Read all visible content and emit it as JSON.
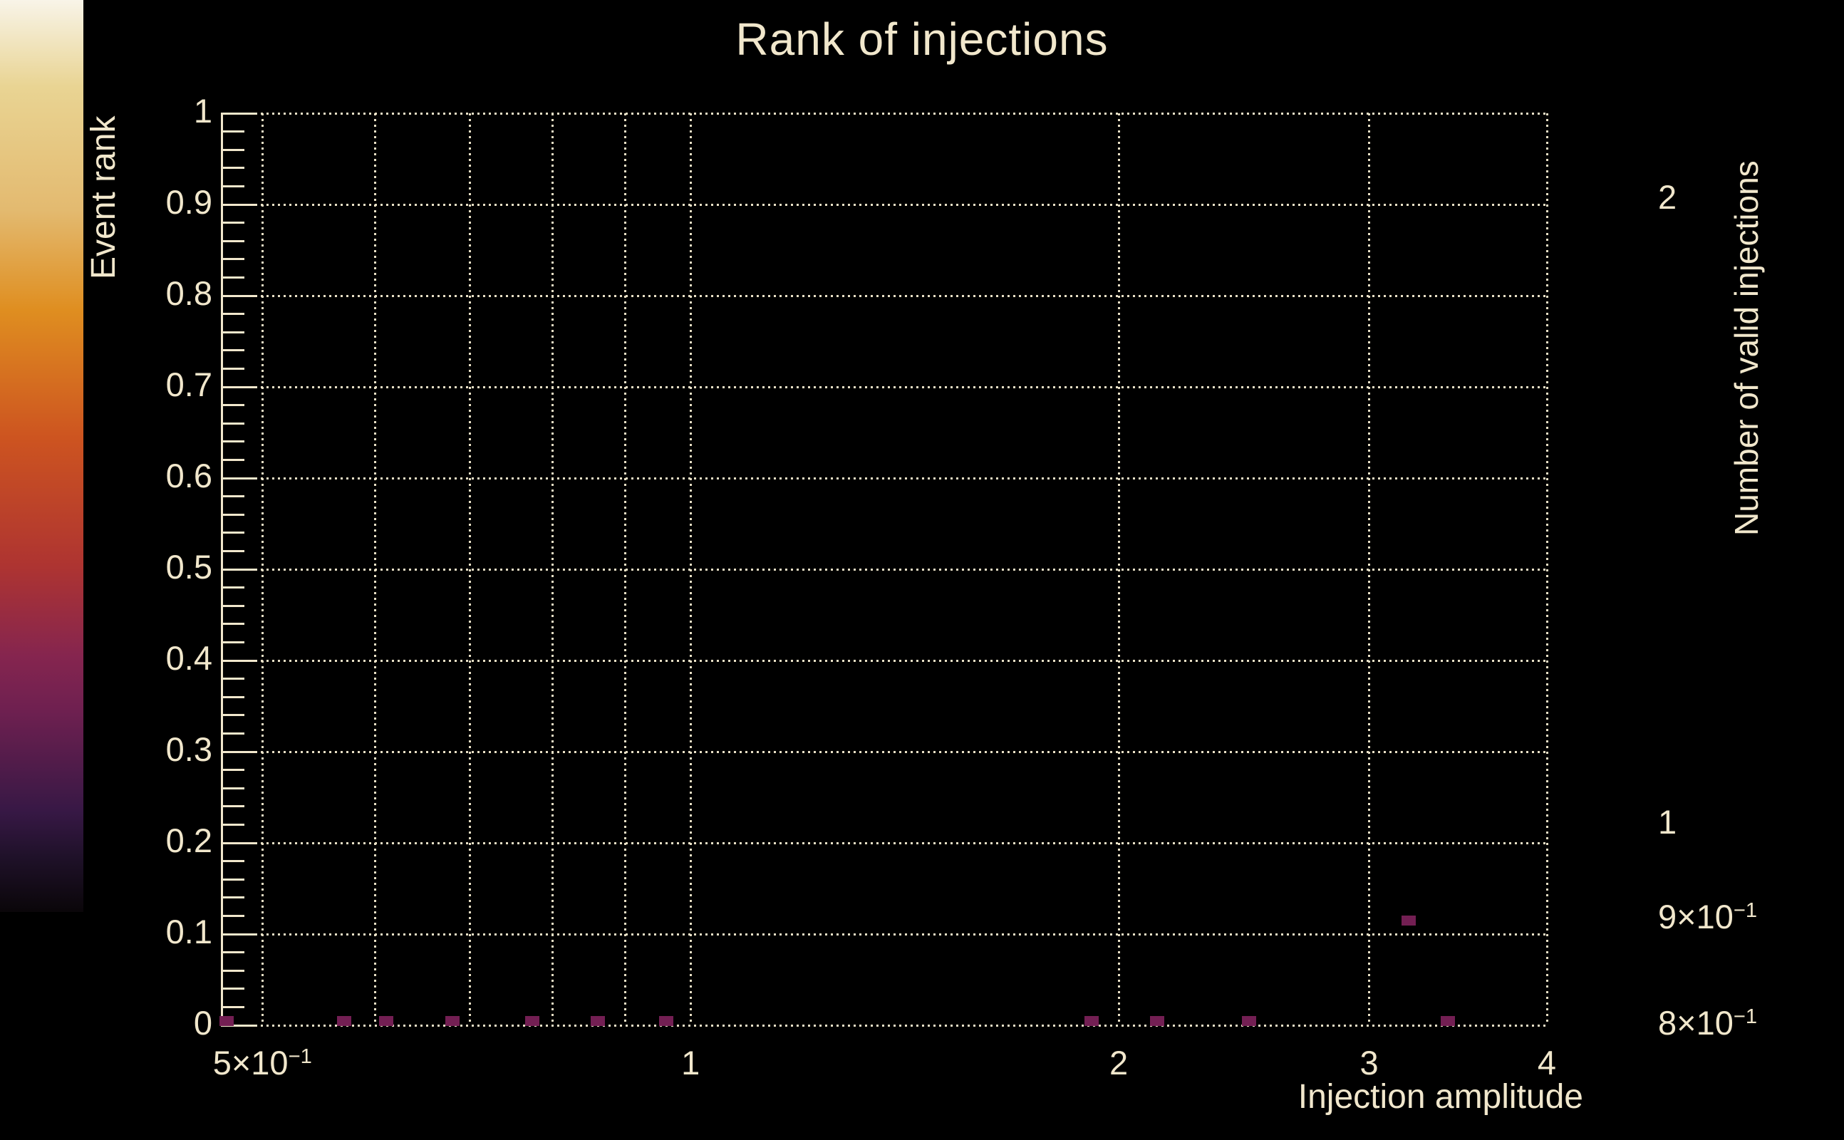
{
  "colors": {
    "background": "#000000",
    "text": "#f1e7cc",
    "grid": "#e9e0c6",
    "marker": "#731f53",
    "colorbar_tick": "#000000"
  },
  "chart_data": {
    "type": "scatter",
    "title": "Rank of injections",
    "xlabel": "Injection amplitude",
    "ylabel": "Event rank",
    "zlabel": "Number of valid injections",
    "x_scale": "log",
    "y_scale": "linear",
    "xlim": [
      0.4675,
      4
    ],
    "ylim": [
      0,
      1
    ],
    "grid": true,
    "x_gridlines": [
      0.5,
      0.6,
      0.7,
      0.8,
      0.9,
      1,
      2,
      3,
      4
    ],
    "x_tick_labels": [
      {
        "v": 0.5,
        "m": "5×10",
        "e": "−1"
      },
      {
        "v": 1,
        "m": "1"
      },
      {
        "v": 2,
        "m": "2"
      },
      {
        "v": 3,
        "m": "3"
      },
      {
        "v": 4,
        "m": "4"
      }
    ],
    "y_major_step": 0.1,
    "y_minor_step": 0.02,
    "y_tick_labels": [
      {
        "v": 0,
        "t": "0"
      },
      {
        "v": 0.1,
        "t": "0.1"
      },
      {
        "v": 0.2,
        "t": "0.2"
      },
      {
        "v": 0.3,
        "t": "0.3"
      },
      {
        "v": 0.4,
        "t": "0.4"
      },
      {
        "v": 0.5,
        "t": "0.5"
      },
      {
        "v": 0.6,
        "t": "0.6"
      },
      {
        "v": 0.7,
        "t": "0.7"
      },
      {
        "v": 0.8,
        "t": "0.8"
      },
      {
        "v": 0.9,
        "t": "0.9"
      },
      {
        "v": 1,
        "t": "1"
      }
    ],
    "points": [
      {
        "x": 0.472,
        "y": 0.005,
        "n": 1
      },
      {
        "x": 0.571,
        "y": 0.005,
        "n": 1
      },
      {
        "x": 0.611,
        "y": 0.005,
        "n": 1
      },
      {
        "x": 0.68,
        "y": 0.005,
        "n": 1
      },
      {
        "x": 0.774,
        "y": 0.005,
        "n": 1
      },
      {
        "x": 0.861,
        "y": 0.005,
        "n": 1
      },
      {
        "x": 0.961,
        "y": 0.005,
        "n": 1
      },
      {
        "x": 1.913,
        "y": 0.005,
        "n": 1
      },
      {
        "x": 2.128,
        "y": 0.005,
        "n": 1
      },
      {
        "x": 2.471,
        "y": 0.005,
        "n": 1
      },
      {
        "x": 3.409,
        "y": 0.005,
        "n": 1
      },
      {
        "x": 3.198,
        "y": 0.115,
        "n": 1
      }
    ],
    "colorbar": {
      "scale": "log",
      "lim": [
        0.8,
        2.2
      ],
      "ticks": [
        {
          "v": 2,
          "m": "2",
          "major": false
        },
        {
          "v": 1,
          "m": "1",
          "major": true
        },
        {
          "v": 0.9,
          "m": "9×10",
          "e": "−1",
          "major": false
        },
        {
          "v": 0.8,
          "m": "8×10",
          "e": "−1",
          "major": false
        }
      ],
      "gradient": [
        [
          0,
          "#f8f4e8"
        ],
        [
          9.5,
          "#e9d493"
        ],
        [
          23,
          "#e3ba70"
        ],
        [
          34,
          "#df8e20"
        ],
        [
          48,
          "#cd5420"
        ],
        [
          62,
          "#ae3431"
        ],
        [
          72,
          "#85254f"
        ],
        [
          78,
          "#6e2050"
        ],
        [
          89,
          "#371845"
        ],
        [
          94,
          "#1f1129"
        ],
        [
          100,
          "#0a0609"
        ]
      ]
    }
  }
}
